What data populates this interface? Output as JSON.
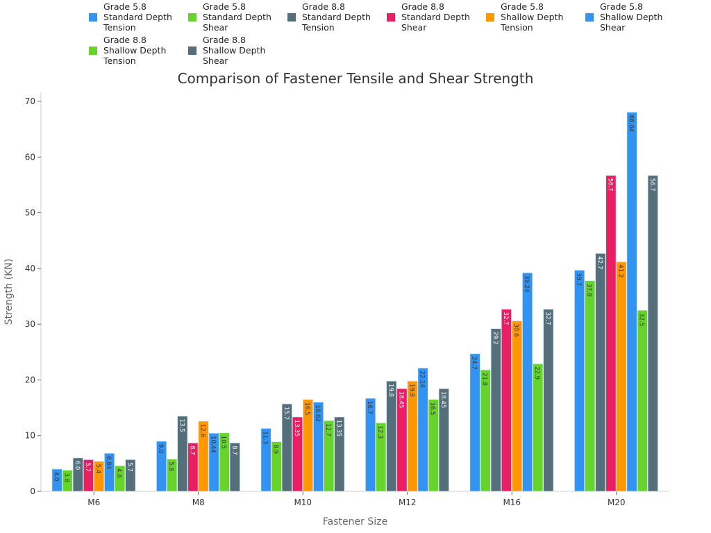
{
  "chart_data": {
    "type": "bar",
    "title": "Comparison of Fastener Tensile and Shear Strength",
    "xlabel": "Fastener Size",
    "ylabel": "Strength (KN)",
    "ylim": [
      0,
      70
    ],
    "yticks": [
      0,
      10,
      20,
      30,
      40,
      50,
      60,
      70
    ],
    "grid": false,
    "legend_placement": "top",
    "categories": [
      "M6",
      "M8",
      "M10",
      "M12",
      "M16",
      "M20"
    ],
    "series": [
      {
        "name": "Grade 5.8 Standard Depth Tension",
        "color": "#3393f0",
        "labels": [
          "4.0",
          "9.0",
          "11.3",
          "16.7",
          "24.7",
          "39.7"
        ],
        "values": [
          4.0,
          9.0,
          11.3,
          16.7,
          24.7,
          39.7
        ]
      },
      {
        "name": "Grade 5.8 Standard Depth Shear",
        "color": "#66d42a",
        "labels": [
          "3.8",
          "5.8",
          "8.9",
          "12.3",
          "21.8",
          "37.8"
        ],
        "values": [
          3.8,
          5.8,
          8.9,
          12.3,
          21.8,
          37.8
        ]
      },
      {
        "name": "Grade 8.8 Standard Depth Tension",
        "color": "#546e7a",
        "labels": [
          "6.0",
          "13.5",
          "15.7",
          "19.8",
          "29.2",
          "42.7"
        ],
        "values": [
          6.0,
          13.5,
          15.7,
          19.8,
          29.2,
          42.7
        ]
      },
      {
        "name": "Grade 8.8 Standard Depth Shear",
        "color": "#e91e63",
        "labels": [
          "5.7",
          "8.7",
          "13.35",
          "18.45",
          "32.7",
          "56.7"
        ],
        "values": [
          5.7,
          8.7,
          13.35,
          18.45,
          32.7,
          56.7
        ]
      },
      {
        "name": "Grade 5.8 Shallow Depth Tension",
        "color": "#ff9800",
        "labels": [
          "5.4",
          "12.6",
          "16.5",
          "19.8",
          "30.6",
          "41.2"
        ],
        "values": [
          5.4,
          12.6,
          16.5,
          19.8,
          30.6,
          41.2
        ]
      },
      {
        "name": "Grade 5.8 Shallow Depth Shear",
        "color": "#3393f0",
        "labels": [
          "6.84",
          "10.44",
          "16.02",
          "22.14",
          "39.24",
          "68.04"
        ],
        "values": [
          6.84,
          10.44,
          16.02,
          22.14,
          39.24,
          68.04
        ]
      },
      {
        "name": "Grade 8.8 Shallow Depth Tension",
        "color": "#66d42a",
        "labels": [
          "4.6",
          "10.5",
          "12.7",
          "16.5",
          "22.9",
          "32.5"
        ],
        "values": [
          4.6,
          10.5,
          12.7,
          16.5,
          22.9,
          32.5
        ]
      },
      {
        "name": "Grade 8.8 Shallow Depth Shear",
        "color": "#546e7a",
        "labels": [
          "5.7",
          "8.7",
          "13.35",
          "18.45",
          "32.7",
          "56.7"
        ],
        "values": [
          5.7,
          8.7,
          13.35,
          18.45,
          32.7,
          56.7
        ]
      }
    ],
    "legend_lines": [
      [
        "Grade 5.8",
        "Standard Depth",
        "Tension"
      ],
      [
        "Grade 5.8",
        "Standard Depth",
        "Shear"
      ],
      [
        "Grade 8.8",
        "Standard Depth",
        "Tension"
      ],
      [
        "Grade 8.8",
        "Standard Depth",
        "Shear"
      ],
      [
        "Grade 5.8",
        "Shallow Depth",
        "Tension"
      ],
      [
        "Grade 5.8",
        "Shallow Depth",
        "Shear"
      ],
      [
        "Grade 8.8",
        "Shallow Depth",
        "Tension"
      ],
      [
        "Grade 8.8",
        "Shallow Depth",
        "Shear"
      ]
    ]
  }
}
